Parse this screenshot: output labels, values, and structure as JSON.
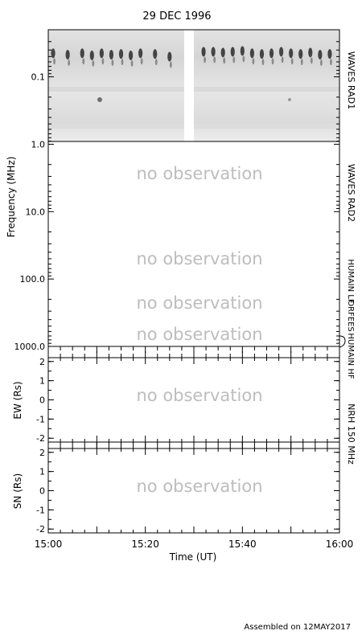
{
  "chart_data": {
    "type": "heatmap",
    "title": "29 DEC 1996",
    "xlabel": "Time (UT)",
    "x_ticks": [
      "15:00",
      "15:20",
      "15:40",
      "16:00"
    ],
    "x_range": [
      "15:00",
      "16:00"
    ],
    "panels": [
      {
        "id": "spectrogram",
        "ylabel": "Frequency (MHz)",
        "y_scale": "log",
        "y_range": [
          0.02,
          1000
        ],
        "y_ticks": [
          "0.1",
          "1.0",
          "10.0",
          "100.0",
          "1000.0"
        ],
        "bands": [
          {
            "label": "WAVES RAD1",
            "range_mhz": [
              0.02,
              1.0
            ],
            "status": "data"
          },
          {
            "label": "WAVES RAD2",
            "range_mhz": [
              1.0,
              14
            ],
            "status": "no observation"
          },
          {
            "label": "HUMAIN LF",
            "range_mhz": [
              14,
              470
            ],
            "status": "no observation"
          },
          {
            "label": "ORFEES",
            "status": "no observation"
          },
          {
            "label": "HUMAIN HF",
            "status": "no observation"
          }
        ],
        "data_gap": {
          "start": "15:28",
          "end": "15:30"
        },
        "bursts": [
          {
            "t": "15:01",
            "f": 0.04
          },
          {
            "t": "15:04",
            "f": 0.042
          },
          {
            "t": "15:07",
            "f": 0.04
          },
          {
            "t": "15:09",
            "f": 0.043
          },
          {
            "t": "15:11",
            "f": 0.04
          },
          {
            "t": "15:13",
            "f": 0.042
          },
          {
            "t": "15:15",
            "f": 0.041
          },
          {
            "t": "15:17",
            "f": 0.043
          },
          {
            "t": "15:19",
            "f": 0.04
          },
          {
            "t": "15:22",
            "f": 0.041
          },
          {
            "t": "15:25",
            "f": 0.045
          },
          {
            "t": "15:32",
            "f": 0.038
          },
          {
            "t": "15:34",
            "f": 0.038
          },
          {
            "t": "15:36",
            "f": 0.039
          },
          {
            "t": "15:38",
            "f": 0.038
          },
          {
            "t": "15:40",
            "f": 0.037
          },
          {
            "t": "15:42",
            "f": 0.04
          },
          {
            "t": "15:44",
            "f": 0.041
          },
          {
            "t": "15:46",
            "f": 0.04
          },
          {
            "t": "15:48",
            "f": 0.038
          },
          {
            "t": "15:50",
            "f": 0.04
          },
          {
            "t": "15:52",
            "f": 0.041
          },
          {
            "t": "15:54",
            "f": 0.039
          },
          {
            "t": "15:56",
            "f": 0.042
          },
          {
            "t": "15:58",
            "f": 0.041
          }
        ]
      },
      {
        "id": "ew",
        "ylabel": "EW (Rs)",
        "y_range": [
          -2.2,
          2.2
        ],
        "y_ticks": [
          "-2",
          "-1",
          "0",
          "1",
          "2"
        ],
        "status": "no observation"
      },
      {
        "id": "sn",
        "ylabel": "SN (Rs)",
        "y_range": [
          -2.2,
          2.2
        ],
        "y_ticks": [
          "-2",
          "-1",
          "0",
          "1",
          "2"
        ],
        "status": "no observation"
      }
    ],
    "right_label_nrh": "NRH 150 MHz",
    "no_obs_text": "no observation",
    "footer": "Assembled on 12MAY2017"
  }
}
